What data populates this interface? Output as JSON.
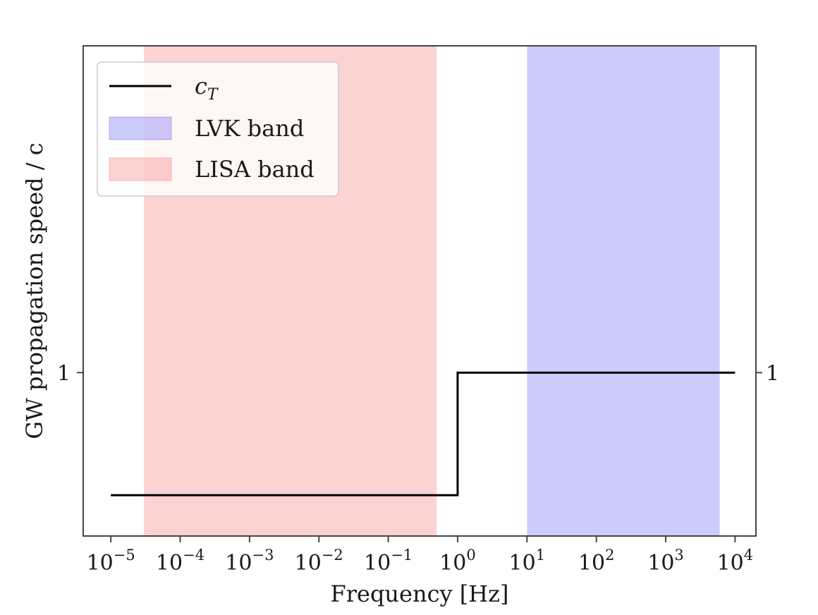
{
  "chart_data": {
    "type": "line",
    "xscale": "log",
    "xlim": [
      4e-06,
      20000.0
    ],
    "ylim": [
      0.6,
      1.8
    ],
    "grid": false,
    "xlabel": "Frequency [Hz]",
    "ylabel": "GW propagation speed / c",
    "x_ticks": [
      1e-05,
      0.0001,
      0.001,
      0.01,
      0.1,
      1.0,
      10.0,
      100.0,
      1000.0,
      10000.0
    ],
    "x_tick_labels": [
      {
        "base": "10",
        "exp": "−5"
      },
      {
        "base": "10",
        "exp": "−4"
      },
      {
        "base": "10",
        "exp": "−3"
      },
      {
        "base": "10",
        "exp": "−2"
      },
      {
        "base": "10",
        "exp": "−1"
      },
      {
        "base": "10",
        "exp": "0"
      },
      {
        "base": "10",
        "exp": "1"
      },
      {
        "base": "10",
        "exp": "2"
      },
      {
        "base": "10",
        "exp": "3"
      },
      {
        "base": "10",
        "exp": "4"
      }
    ],
    "y_ticks": [
      1
    ],
    "y_tick_labels": [
      "1"
    ],
    "y_tick_labels_right": [
      "1"
    ],
    "series": [
      {
        "name": "c",
        "name_subscript": "T",
        "color": "#000000",
        "x": [
          1e-05,
          1.0,
          1.0,
          10000.0
        ],
        "y": [
          0.7,
          0.7,
          1.0,
          1.0
        ]
      }
    ],
    "bands": [
      {
        "name": "LVK band",
        "xmin": 10,
        "xmax": 6000,
        "color": "#0000ee",
        "opacity": 0.2
      },
      {
        "name": "LISA band",
        "xmin": 3e-05,
        "xmax": 0.5,
        "color": "#ee2222",
        "opacity": 0.2
      }
    ],
    "legend": {
      "placement": "top-left",
      "entries": [
        {
          "type": "line",
          "label": "c",
          "subscript": "T",
          "color": "#000000"
        },
        {
          "type": "patch",
          "label": "LVK band",
          "color": "#0000ee",
          "opacity": 0.2
        },
        {
          "type": "patch",
          "label": "LISA band",
          "color": "#ee2222",
          "opacity": 0.2
        }
      ]
    }
  }
}
